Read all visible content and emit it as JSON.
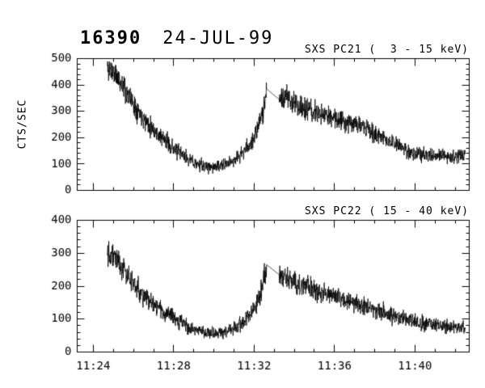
{
  "header": {
    "obs_id": "16390",
    "date": "24-JUL-99"
  },
  "chart_data": [
    {
      "type": "line",
      "title": "SXS PC21 (  3 - 15 keV)",
      "ylabel": "CTS/SEC",
      "ylim": [
        0,
        500
      ],
      "ytick_step": 100,
      "ytick_minor_step": 20,
      "xlim": [
        23.2,
        42.7
      ],
      "xticks": [
        24,
        28,
        32,
        36,
        40
      ],
      "xtick_labels": [
        "11:24",
        "11:28",
        "11:32",
        "11:36",
        "11:40"
      ],
      "xtick_minor_step": 1,
      "show_xtick_labels": false,
      "line_color": "#000000",
      "t": [
        24.7,
        25.0,
        25.3,
        25.7,
        26.0,
        26.5,
        27.0,
        27.5,
        28.0,
        28.5,
        29.0,
        29.5,
        30.0,
        30.5,
        31.0,
        31.4,
        31.8,
        32.1,
        32.4,
        32.62,
        33.25,
        33.6,
        34.0,
        34.5,
        35.0,
        35.5,
        36.0,
        36.5,
        37.0,
        37.5,
        38.0,
        38.5,
        39.0,
        39.5,
        40.0,
        40.5,
        41.0,
        41.5,
        42.0,
        42.5
      ],
      "v": [
        465,
        450,
        415,
        370,
        330,
        275,
        230,
        195,
        160,
        130,
        105,
        92,
        88,
        95,
        115,
        140,
        175,
        215,
        290,
        385,
        345,
        350,
        335,
        310,
        295,
        285,
        275,
        265,
        255,
        235,
        215,
        195,
        175,
        155,
        140,
        133,
        128,
        133,
        128,
        130
      ],
      "gap": [
        32.62,
        33.25
      ],
      "noise_k": 1.2,
      "seed": 11
    },
    {
      "type": "line",
      "title": "SXS PC22 ( 15 - 40 keV)",
      "ylabel": "",
      "ylim": [
        0,
        400
      ],
      "ytick_step": 100,
      "ytick_minor_step": 20,
      "xlim": [
        23.2,
        42.7
      ],
      "xticks": [
        24,
        28,
        32,
        36,
        40
      ],
      "xtick_labels": [
        "11:24",
        "11:28",
        "11:32",
        "11:36",
        "11:40"
      ],
      "xtick_minor_step": 1,
      "show_xtick_labels": true,
      "line_color": "#000000",
      "t": [
        24.7,
        25.0,
        25.3,
        25.7,
        26.0,
        26.5,
        27.0,
        27.5,
        28.0,
        28.5,
        29.0,
        29.5,
        30.0,
        30.5,
        31.0,
        31.4,
        31.8,
        32.1,
        32.4,
        32.62,
        33.25,
        33.6,
        34.0,
        34.5,
        35.0,
        35.5,
        36.0,
        36.5,
        37.0,
        37.5,
        38.0,
        38.5,
        39.0,
        39.5,
        40.0,
        40.5,
        41.0,
        41.5,
        42.0,
        42.5
      ],
      "v": [
        310,
        300,
        270,
        235,
        205,
        170,
        145,
        122,
        102,
        85,
        70,
        60,
        56,
        60,
        72,
        88,
        110,
        140,
        195,
        265,
        235,
        225,
        215,
        200,
        190,
        180,
        168,
        158,
        150,
        140,
        130,
        120,
        110,
        100,
        92,
        86,
        82,
        79,
        76,
        72
      ],
      "gap": [
        32.62,
        33.25
      ],
      "noise_k": 1.15,
      "seed": 22
    }
  ]
}
